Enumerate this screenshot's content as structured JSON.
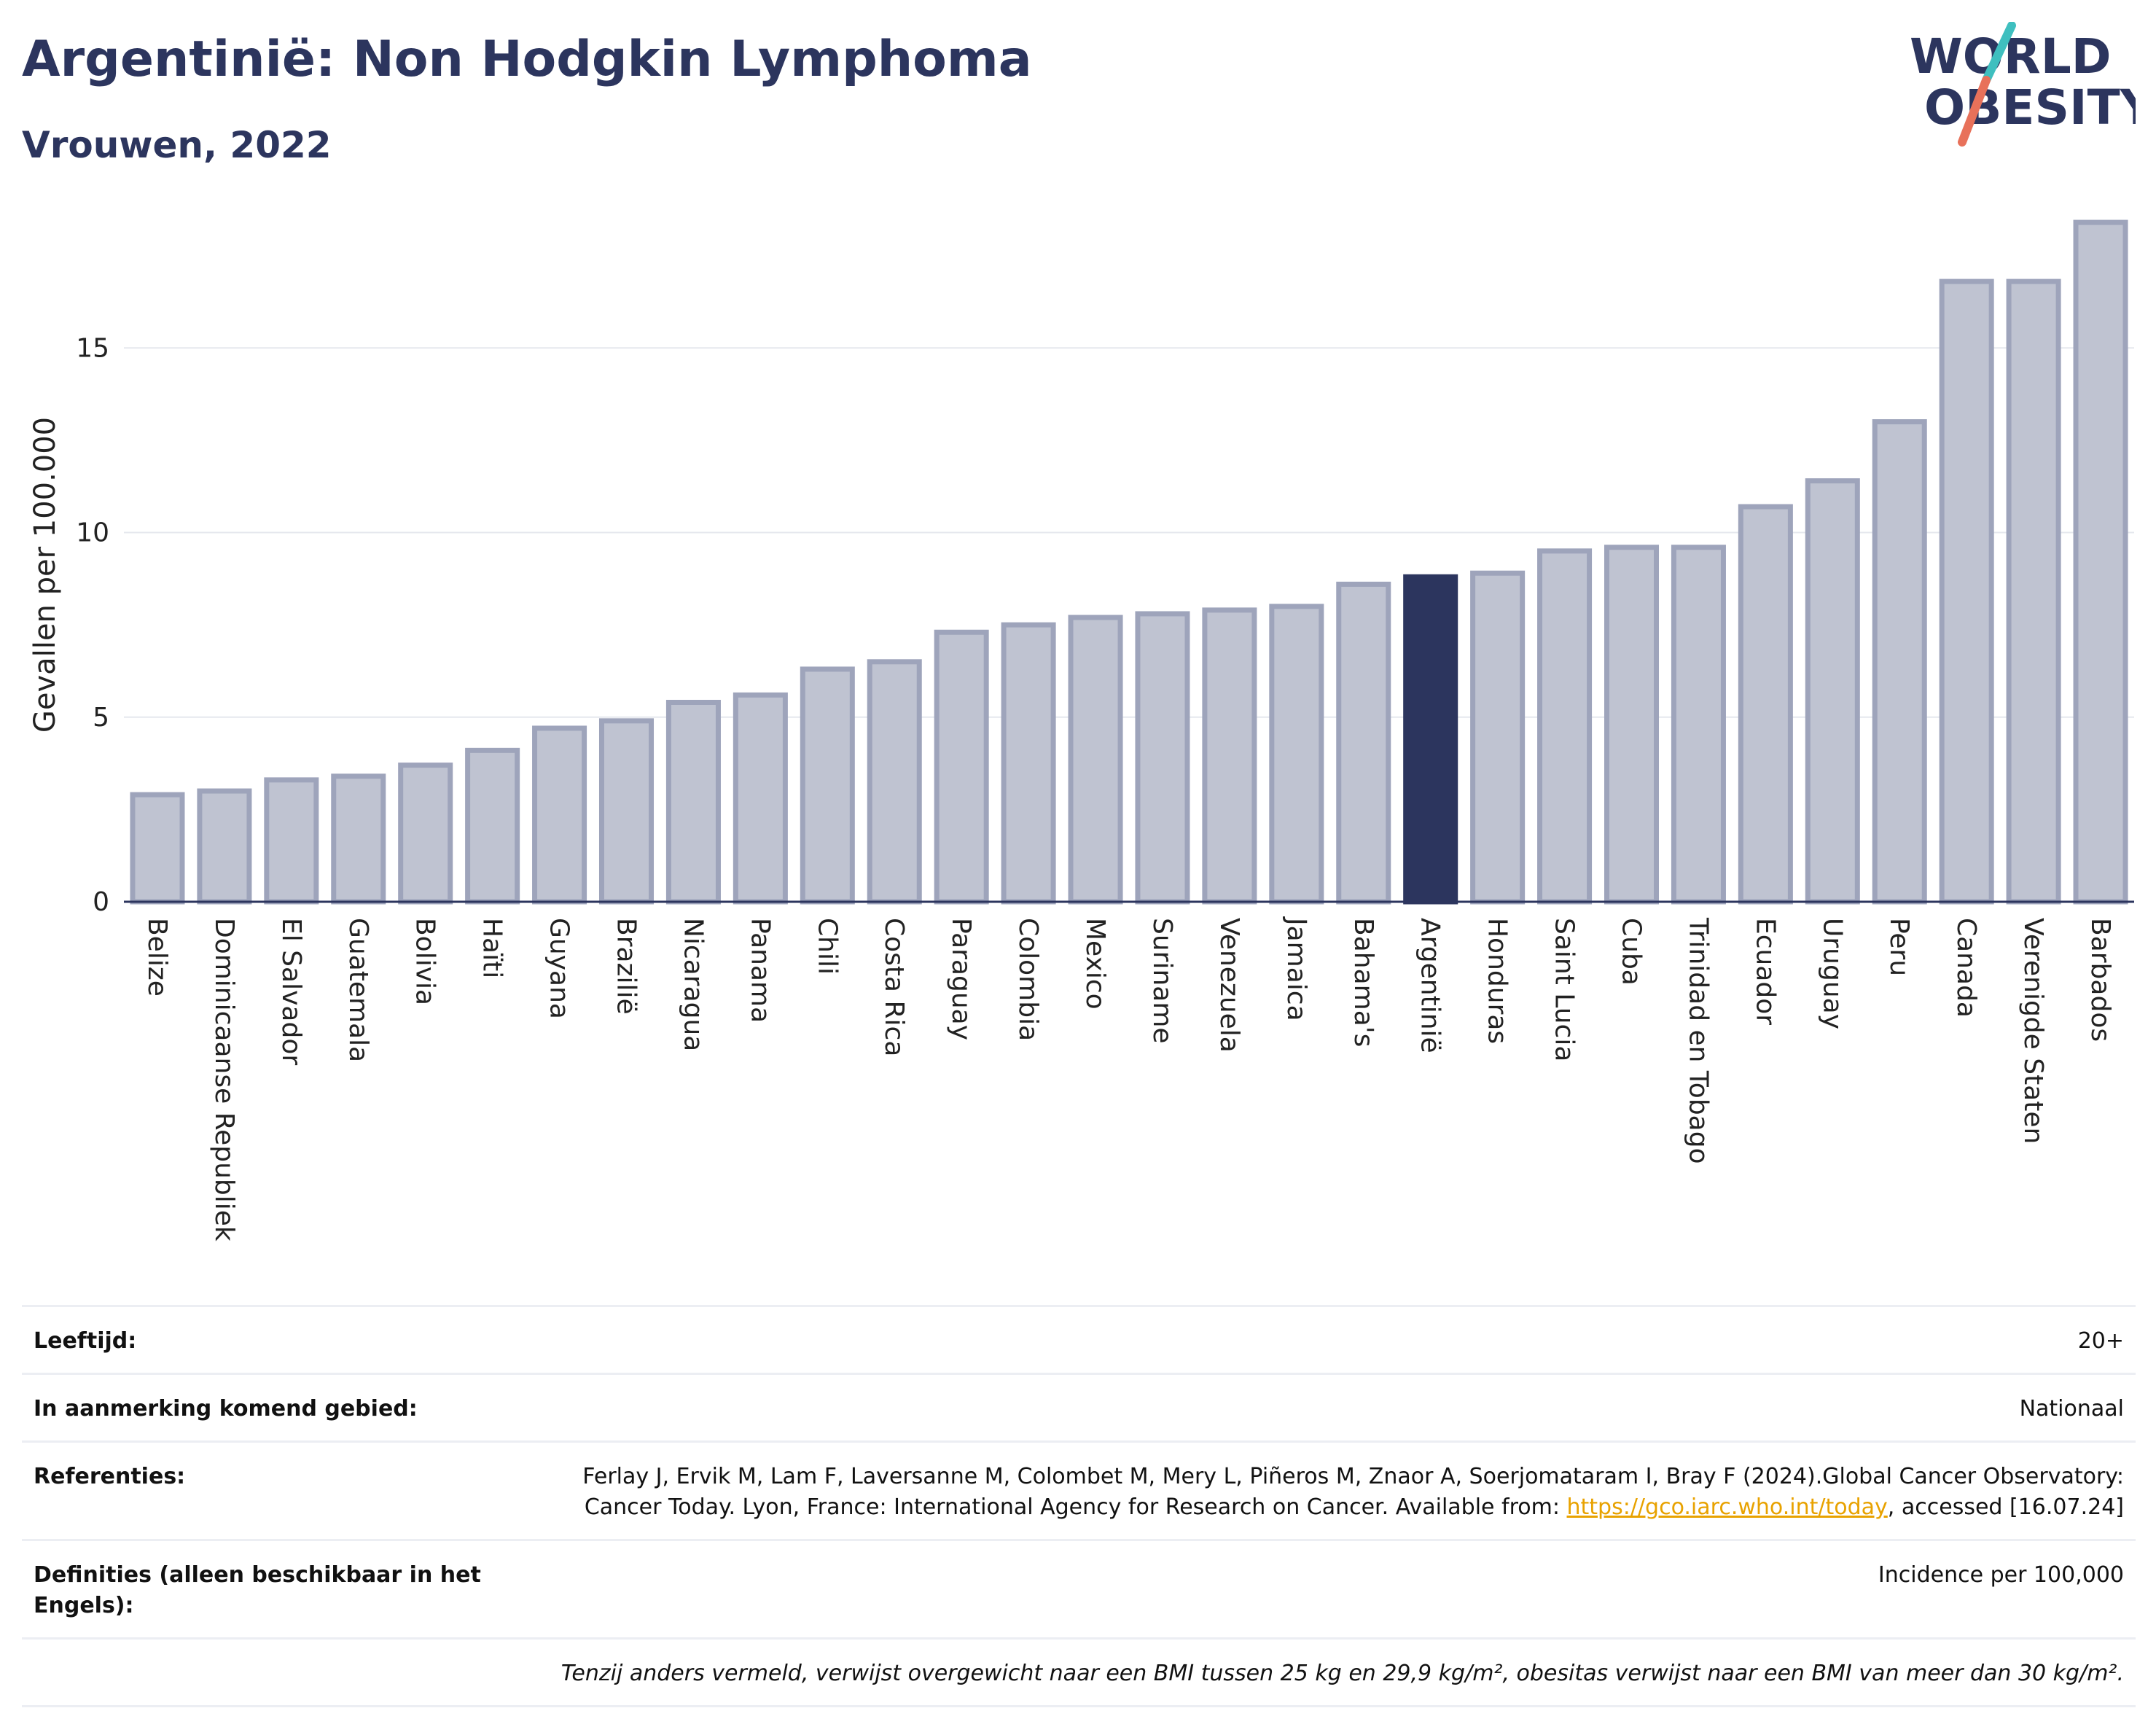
{
  "header": {
    "title": "Argentinië: Non Hodgkin Lymphoma",
    "subtitle": "Vrouwen, 2022"
  },
  "logo": {
    "line1": "WORLD",
    "line2": "OBESITY",
    "colors": {
      "text": "#2c355e",
      "slash_top": "#3fbfbf",
      "slash_bottom": "#e8715a"
    }
  },
  "colors": {
    "bar": "#bfc3d1",
    "bar_stroke": "#9ea4bb",
    "highlight": "#2c355e",
    "grid": "#e6e8ee",
    "axis": "#2c355e"
  },
  "chart_data": {
    "type": "bar",
    "ylabel": "Gevallen per 100.000",
    "ylim": [
      0,
      18.5
    ],
    "yticks": [
      0,
      5,
      10,
      15
    ],
    "grid": true,
    "highlight": "Argentinië",
    "categories": [
      "Belize",
      "Dominicaanse Republiek",
      "El Salvador",
      "Guatemala",
      "Bolivia",
      "Haïti",
      "Guyana",
      "Brazilië",
      "Nicaragua",
      "Panama",
      "Chili",
      "Costa Rica",
      "Paraguay",
      "Colombia",
      "Mexico",
      "Suriname",
      "Venezuela",
      "Jamaica",
      "Bahama's",
      "Argentinië",
      "Honduras",
      "Saint Lucia",
      "Cuba",
      "Trinidad en Tobago",
      "Ecuador",
      "Uruguay",
      "Peru",
      "Canada",
      "Verenigde Staten",
      "Barbados"
    ],
    "values": [
      2.9,
      3.0,
      3.3,
      3.4,
      3.7,
      4.1,
      4.7,
      4.9,
      5.4,
      5.6,
      6.3,
      6.5,
      7.3,
      7.5,
      7.7,
      7.8,
      7.9,
      8.0,
      8.6,
      8.8,
      8.9,
      9.5,
      9.6,
      9.6,
      10.7,
      11.4,
      13.0,
      16.8,
      16.8,
      18.4
    ]
  },
  "info": {
    "rows": [
      {
        "label": "Leeftijd:",
        "value": "20+"
      },
      {
        "label": "In aanmerking komend gebied:",
        "value": "Nationaal"
      },
      {
        "label": "Referenties:",
        "value_before": "Ferlay J, Ervik M, Lam F, Laversanne M, Colombet M, Mery L, Piñeros M, Znaor A, Soerjomataram I, Bray F (2024).Global Cancer Observatory: Cancer Today. Lyon, France: International Agency for Research on Cancer. Available from: ",
        "link": "https://gco.iarc.who.int/today",
        "value_after": ", accessed [16.07.24]"
      },
      {
        "label": "Definities (alleen beschikbaar in het Engels):",
        "value": "Incidence per 100,000"
      }
    ],
    "note": "Tenzij anders vermeld, verwijst overgewicht naar een BMI tussen 25 kg en 29,9 kg/m², obesitas verwijst naar een BMI van meer dan 30 kg/m²."
  }
}
